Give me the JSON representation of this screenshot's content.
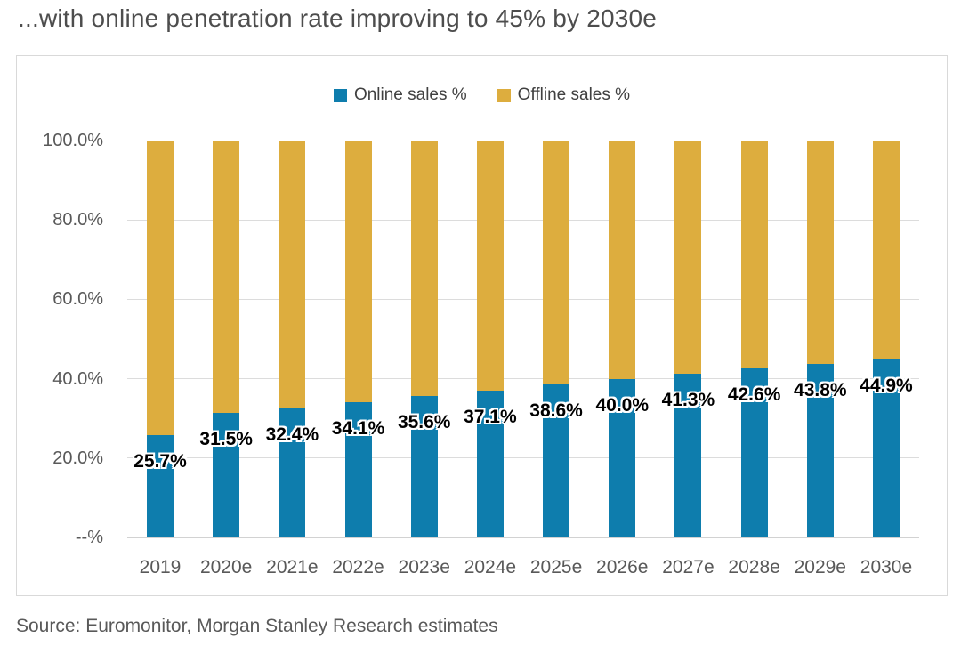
{
  "title": "...with online penetration rate improving to 45% by 2030e",
  "source": "Source: Euromonitor, Morgan Stanley Research estimates",
  "colors": {
    "online": "#0e7dad",
    "offline": "#ddad3e",
    "grid": "#dcdcdc",
    "axis_text": "#595959",
    "title_text": "#4d4d4d"
  },
  "legend": [
    {
      "label": "Online sales %",
      "color": "#0e7dad"
    },
    {
      "label": "Offline sales %",
      "color": "#ddad3e"
    }
  ],
  "chart_data": {
    "type": "bar",
    "stacked": true,
    "title": "",
    "xlabel": "",
    "ylabel": "",
    "legend_position": "top",
    "grid": "horizontal",
    "ylim": [
      0,
      100
    ],
    "y_ticks": [
      "100.0%",
      "80.0%",
      "60.0%",
      "40.0%",
      "20.0%",
      "--%"
    ],
    "categories": [
      "2019",
      "2020e",
      "2021e",
      "2022e",
      "2023e",
      "2024e",
      "2025e",
      "2026e",
      "2027e",
      "2028e",
      "2029e",
      "2030e"
    ],
    "series": [
      {
        "name": "Online sales %",
        "color": "#0e7dad",
        "values": [
          25.7,
          31.5,
          32.4,
          34.1,
          35.6,
          37.1,
          38.6,
          40.0,
          41.3,
          42.6,
          43.8,
          44.9
        ]
      },
      {
        "name": "Offline sales %",
        "color": "#ddad3e",
        "values": [
          74.3,
          68.5,
          67.6,
          65.9,
          64.4,
          62.9,
          61.4,
          60.0,
          58.7,
          57.4,
          56.2,
          55.1
        ]
      }
    ],
    "data_labels": [
      "25.7%",
      "31.5%",
      "32.4%",
      "34.1%",
      "35.6%",
      "37.1%",
      "38.6%",
      "40.0%",
      "41.3%",
      "42.6%",
      "43.8%",
      "44.9%"
    ]
  }
}
